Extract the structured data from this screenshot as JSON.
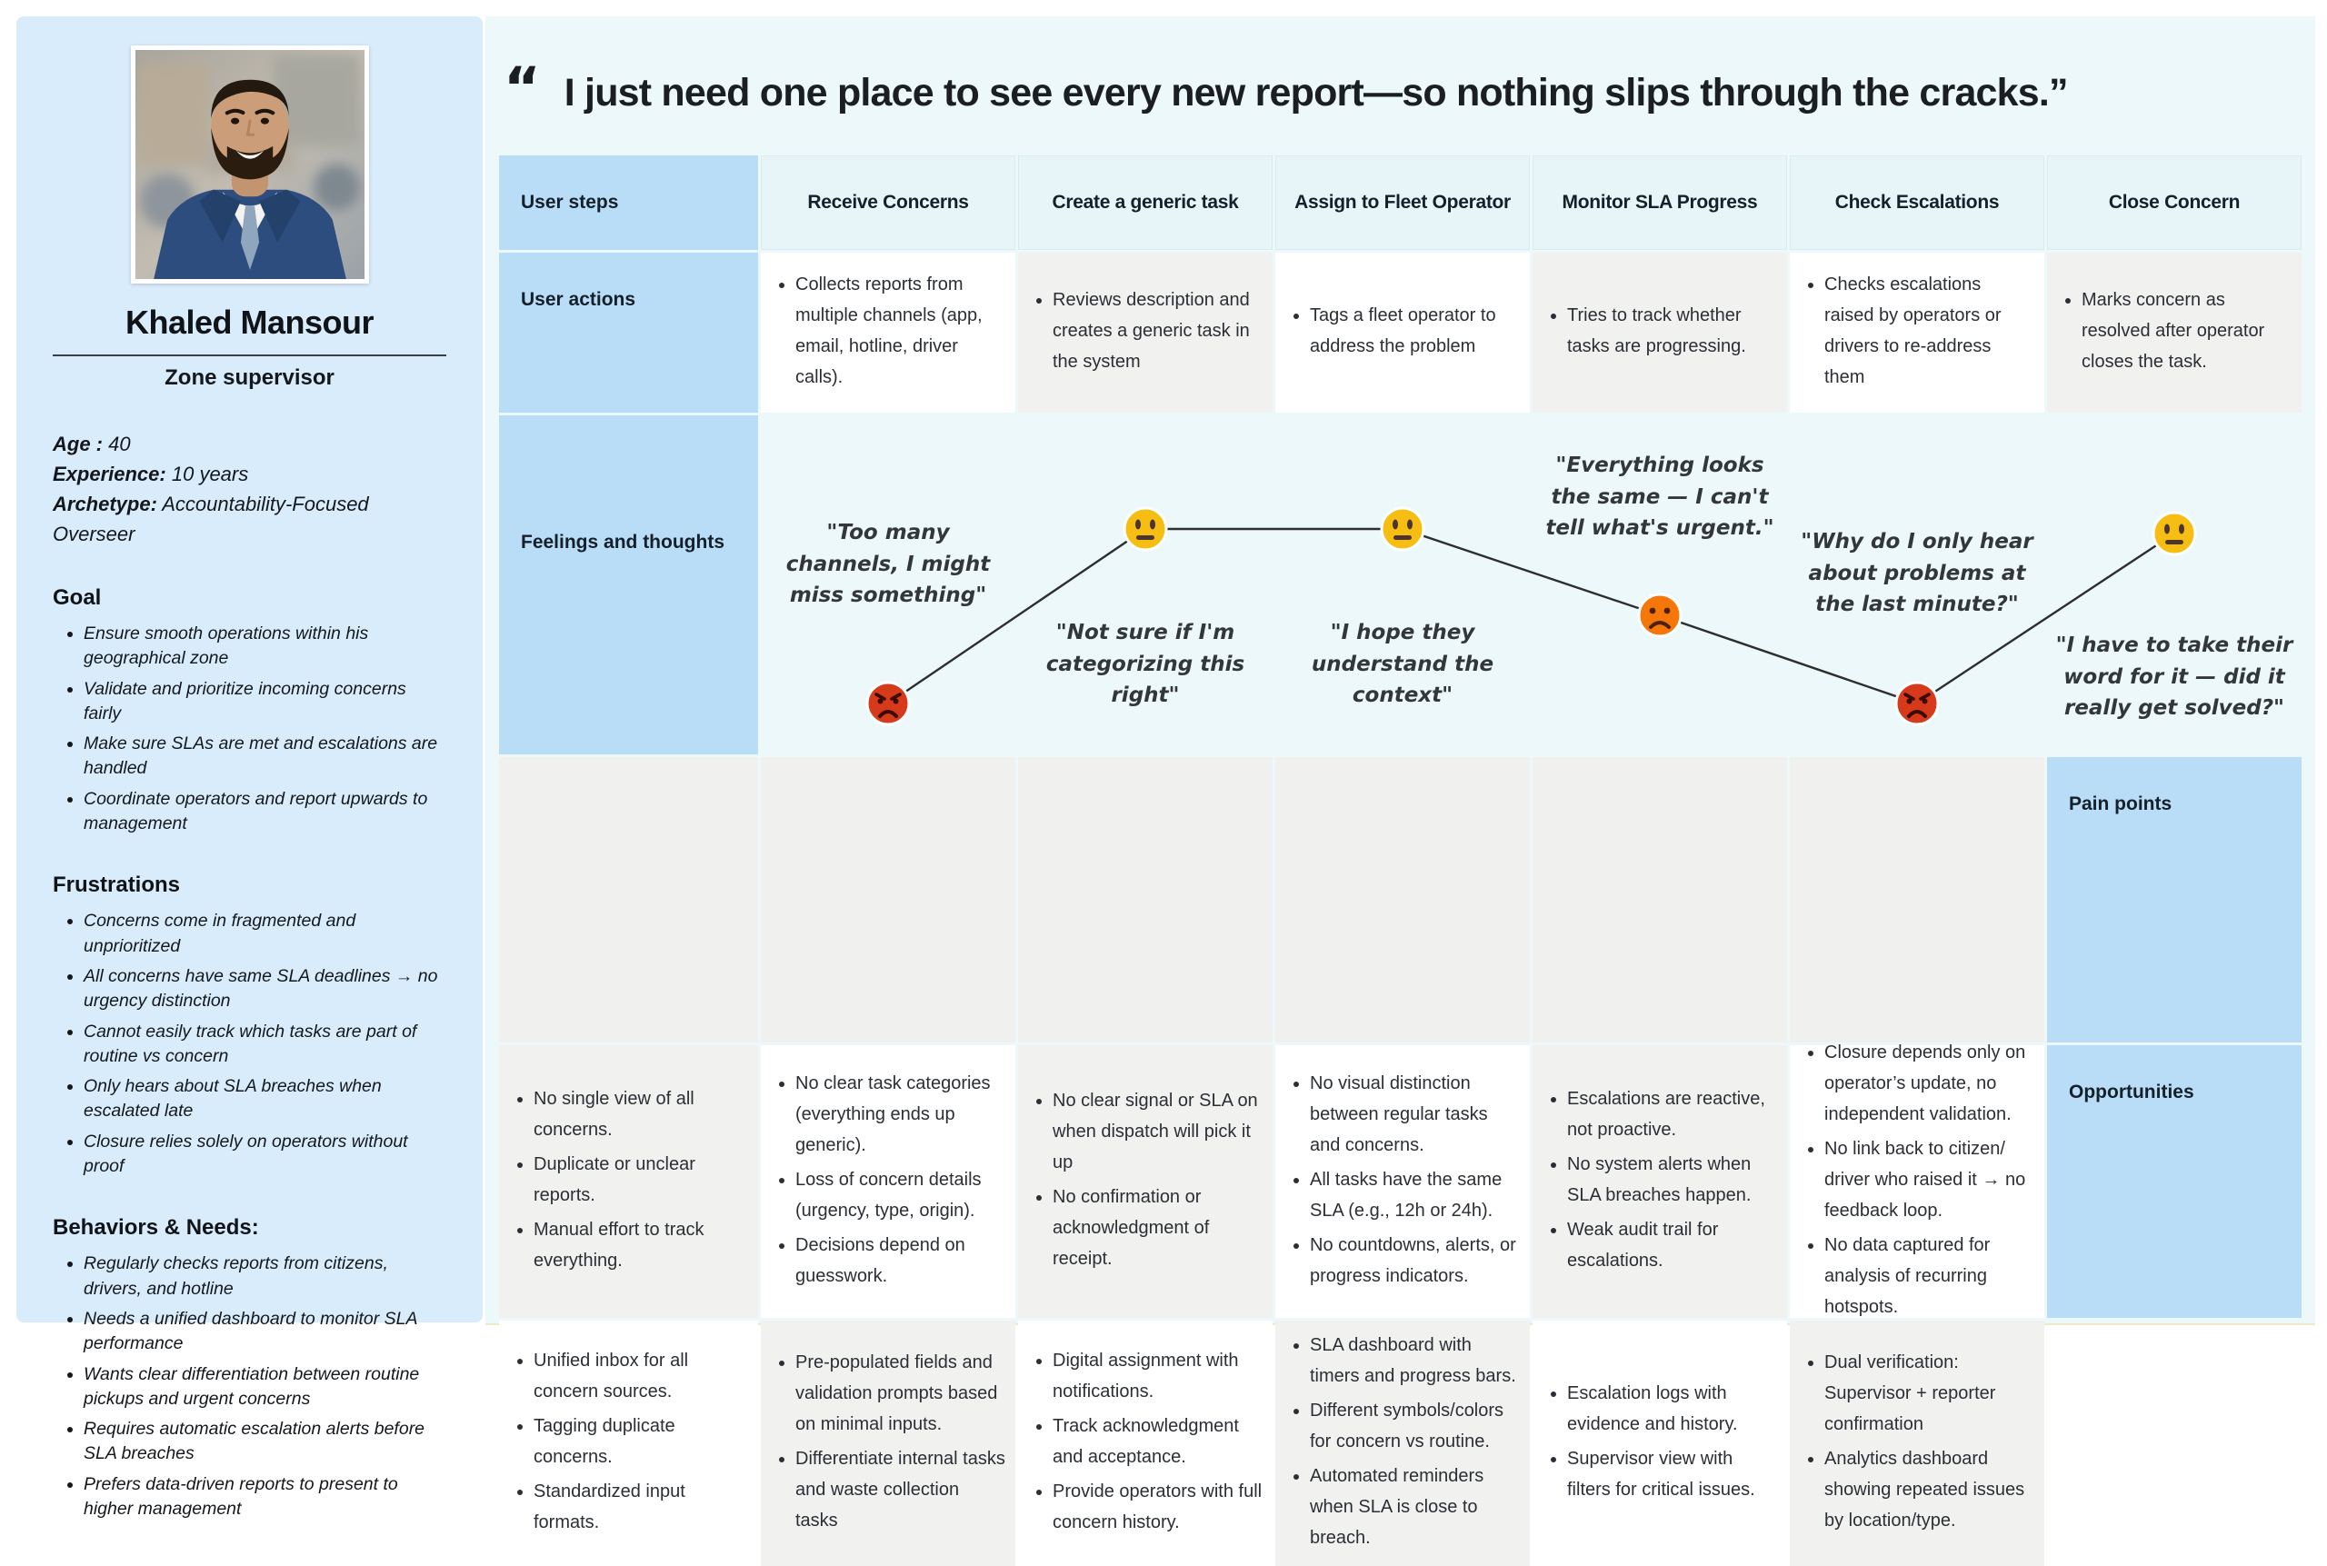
{
  "quote": {
    "open_mark": "“",
    "text": "I just need one place to see every new report—so nothing slips through the cracks.”"
  },
  "persona": {
    "name": "Khaled Mansour",
    "role": "Zone supervisor",
    "photo_icon": "man-in-blue-suit-portrait",
    "attributes": [
      {
        "label": "Age :",
        "value": "40"
      },
      {
        "label": "Experience:",
        "value": "10 years"
      },
      {
        "label": "Archetype:",
        "value": "Accountability-Focused Overseer"
      }
    ],
    "sections": [
      {
        "title": "Goal",
        "items": [
          "Ensure smooth operations within his geographical zone",
          "Validate and prioritize incoming concerns fairly",
          "Make sure SLAs are met and escalations are handled",
          "Coordinate operators and report upwards to management"
        ]
      },
      {
        "title": "Frustrations",
        "items": [
          "Concerns come in fragmented and unprioritized",
          "All concerns have same SLA deadlines → no urgency distinction",
          "Cannot easily track which tasks are part of routine vs concern",
          "Only hears about SLA breaches when escalated late",
          "Closure relies solely on operators without proof"
        ]
      },
      {
        "title": "Behaviors & Needs:",
        "items": [
          "Regularly checks reports from citizens, drivers, and hotline",
          "Needs a unified dashboard to monitor SLA performance",
          "Wants clear differentiation between routine pickups and urgent concerns",
          "Requires automatic escalation alerts before SLA breaches",
          "Prefers data-driven reports to present to higher management"
        ]
      }
    ]
  },
  "journey": {
    "corner_label": "User steps",
    "steps": [
      "Receive Concerns",
      "Create a generic task",
      "Assign to Fleet Operator",
      "Monitor SLA Progress",
      "Check Escalations",
      "Close Concern"
    ],
    "row_labels": {
      "actions": "User actions",
      "feelings": "Feelings and thoughts",
      "pains": "Pain points",
      "opportunities": "Opportunities"
    },
    "actions": [
      [
        "Collects reports from multiple channels (app, email, hotline, driver calls)."
      ],
      [
        "Reviews description and creates a generic task in the system"
      ],
      [
        "Tags a fleet operator to address the problem"
      ],
      [
        "Tries to track whether tasks are progressing."
      ],
      [
        "Checks escalations raised by operators or drivers to re-address them"
      ],
      [
        "Marks concern as resolved after operator closes the task."
      ]
    ],
    "feelings": [
      {
        "emotion": "angry",
        "icon": "#face-angry",
        "quote": "\"Too many channels, I might miss something\""
      },
      {
        "emotion": "neutral",
        "icon": "#face-neutral",
        "quote": "\"Not sure if I'm categorizing this right\""
      },
      {
        "emotion": "neutral",
        "icon": "#face-neutral",
        "quote": "\"I hope they understand the context\""
      },
      {
        "emotion": "sad",
        "icon": "#face-sad",
        "quote": "\"Everything looks the same — I can't tell what's urgent.\""
      },
      {
        "emotion": "angry",
        "icon": "#face-angry",
        "quote": "\"Why do I only hear about problems at the last minute?\""
      },
      {
        "emotion": "neutral",
        "icon": "#face-neutral",
        "quote": "\"I have to take their word for it — did it really get solved?\""
      }
    ],
    "pains": [
      [
        "No single view of all concerns.",
        "Duplicate or unclear reports.",
        "Manual effort to track everything."
      ],
      [
        "No clear task categories (everything ends up generic).",
        "Loss of concern details (urgency, type, origin).",
        "Decisions depend on guesswork."
      ],
      [
        "No clear signal or SLA on when dispatch will pick it up",
        "No confirmation or acknowledgment of receipt."
      ],
      [
        "No visual distinction between regular tasks and concerns.",
        "All tasks have the same SLA (e.g., 12h or 24h).",
        "No countdowns, alerts, or progress indicators."
      ],
      [
        "Escalations are reactive, not proactive.",
        "No system alerts when SLA breaches happen.",
        "Weak audit trail for escalations."
      ],
      [
        "Closure depends only on operator’s update, no independent validation.",
        "No link back to citizen/ driver who raised it → no feedback loop.",
        "No data captured for analysis of recurring hotspots."
      ]
    ],
    "opportunities": [
      [
        "Unified inbox for all concern sources.",
        "Tagging duplicate concerns.",
        "Standardized input formats."
      ],
      [
        "Pre-populated fields and validation prompts based on minimal inputs.",
        "Differentiate internal tasks and waste collection tasks"
      ],
      [
        "Digital assignment with notifications.",
        "Track acknowledgment and acceptance.",
        "Provide operators with full concern history."
      ],
      [
        "SLA dashboard with timers and progress bars.",
        "Different symbols/colors for concern vs routine.",
        "Automated reminders when SLA is close to breach."
      ],
      [
        "Escalation logs with evidence and history.",
        "Supervisor view with filters for critical issues."
      ],
      [
        "Dual verification: Supervisor + reporter confirmation",
        "Analytics dashboard showing repeated issues by location/type."
      ]
    ]
  }
}
